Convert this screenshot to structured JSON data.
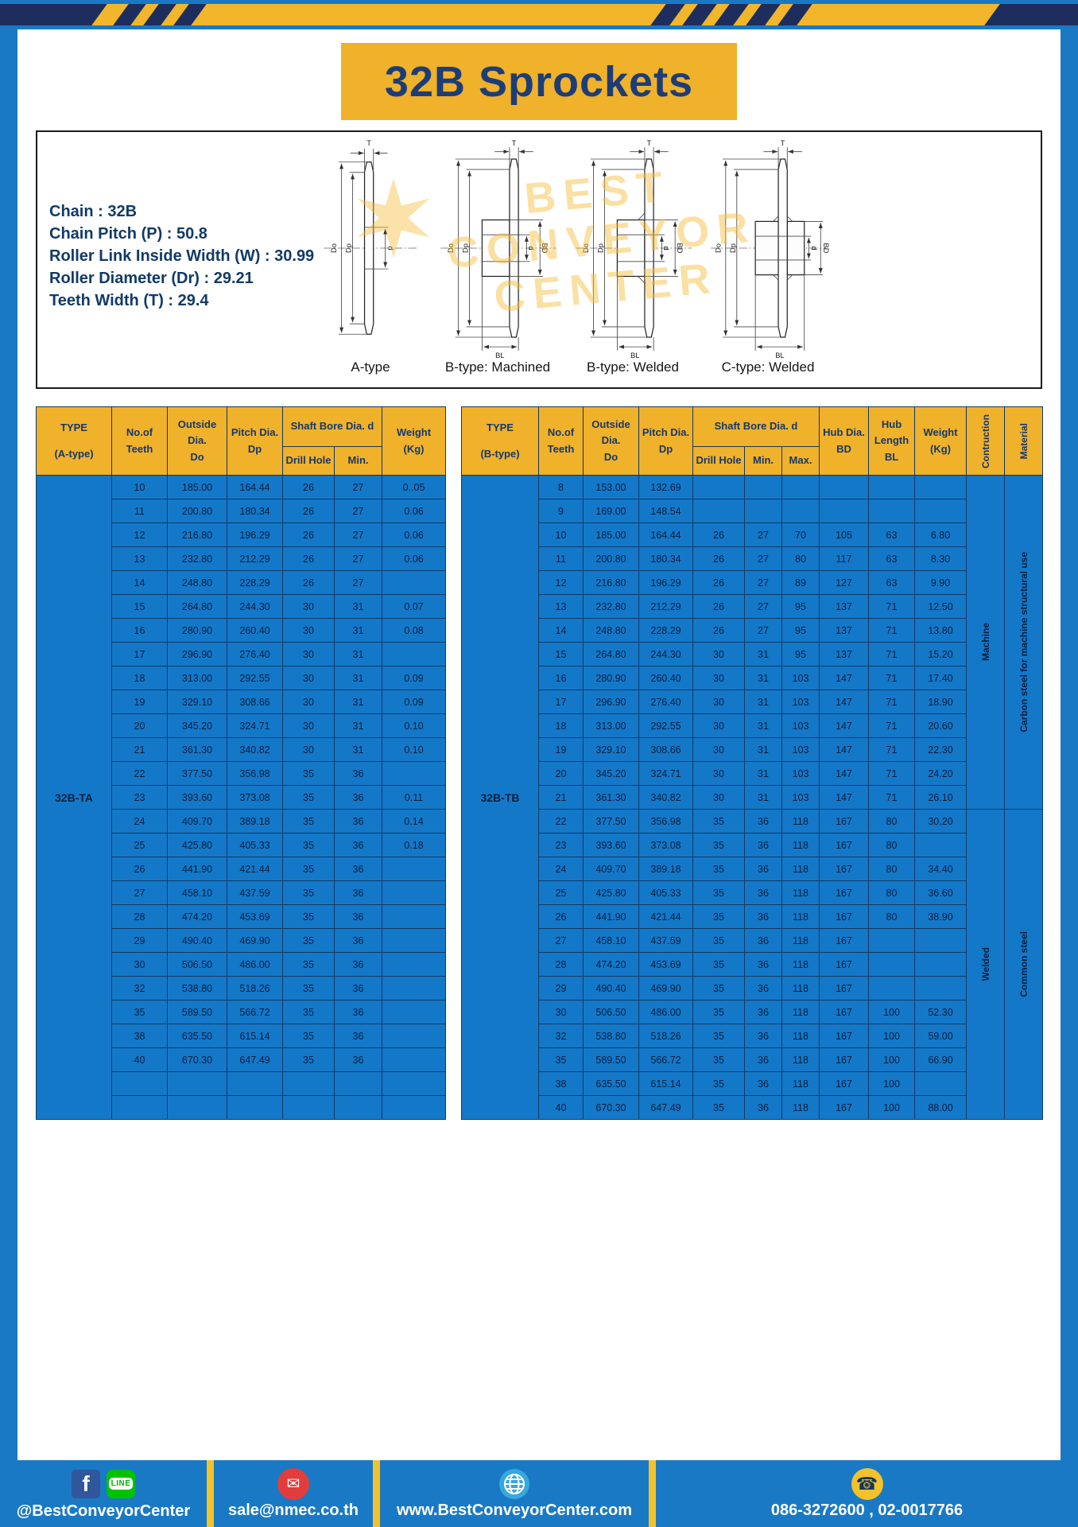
{
  "page": {
    "title": "32B Sprockets"
  },
  "colors": {
    "frame_blue": "#1a79c4",
    "table_cell_blue": "#1478c9",
    "accent_yellow": "#f0b12b",
    "header_navy": "#15386b"
  },
  "specs": {
    "lines": [
      "Chain : 32B",
      "Chain Pitch (P) : 50.8",
      "Roller Link Inside Width (W) : 30.99",
      "Roller Diameter (Dr) : 29.21",
      "Teeth Width (T) : 29.4"
    ]
  },
  "watermark": {
    "lines": [
      "BEST",
      "CONVEYOR",
      "CENTER"
    ]
  },
  "dims": {
    "t": "T",
    "do": "Do",
    "dp": "Dp",
    "d": "d",
    "bd": "BD",
    "bl": "BL"
  },
  "diagram": {
    "captions": [
      "A-type",
      "B-type: Machined",
      "B-type: Welded",
      "C-type: Welded"
    ]
  },
  "table_a": {
    "type_value": "32B-TA",
    "headers": {
      "type": [
        "TYPE",
        "(A-type)"
      ],
      "teeth": [
        "No.of",
        "Teeth"
      ],
      "outside": [
        "Outside",
        "Dia.",
        "Do"
      ],
      "pitch": [
        "Pitch Dia.",
        "Dp"
      ],
      "shaft_bore": "Shaft Bore Dia. d",
      "drill": "Drill Hole",
      "min": "Min.",
      "weight": [
        "Weight",
        "(Kg)"
      ]
    },
    "rows": [
      [
        "10",
        "185.00",
        "164.44",
        "26",
        "27",
        "0..05"
      ],
      [
        "11",
        "200.80",
        "180.34",
        "26",
        "27",
        "0.06"
      ],
      [
        "12",
        "216.80",
        "196.29",
        "26",
        "27",
        "0.06"
      ],
      [
        "13",
        "232.80",
        "212.29",
        "26",
        "27",
        "0.06"
      ],
      [
        "14",
        "248.80",
        "228.29",
        "26",
        "27",
        ""
      ],
      [
        "15",
        "264.80",
        "244.30",
        "30",
        "31",
        "0.07"
      ],
      [
        "16",
        "280.90",
        "260.40",
        "30",
        "31",
        "0.08"
      ],
      [
        "17",
        "296.90",
        "276.40",
        "30",
        "31",
        ""
      ],
      [
        "18",
        "313.00",
        "292.55",
        "30",
        "31",
        "0.09"
      ],
      [
        "19",
        "329.10",
        "308.66",
        "30",
        "31",
        "0.09"
      ],
      [
        "20",
        "345.20",
        "324.71",
        "30",
        "31",
        "0.10"
      ],
      [
        "21",
        "361.30",
        "340.82",
        "30",
        "31",
        "0.10"
      ],
      [
        "22",
        "377.50",
        "356.98",
        "35",
        "36",
        ""
      ],
      [
        "23",
        "393.60",
        "373.08",
        "35",
        "36",
        "0.11"
      ],
      [
        "24",
        "409.70",
        "389.18",
        "35",
        "36",
        "0.14"
      ],
      [
        "25",
        "425.80",
        "405.33",
        "35",
        "36",
        "0.18"
      ],
      [
        "26",
        "441.90",
        "421.44",
        "35",
        "36",
        ""
      ],
      [
        "27",
        "458.10",
        "437.59",
        "35",
        "36",
        ""
      ],
      [
        "28",
        "474.20",
        "453.69",
        "35",
        "36",
        ""
      ],
      [
        "29",
        "490.40",
        "469.90",
        "35",
        "36",
        ""
      ],
      [
        "30",
        "506.50",
        "486.00",
        "35",
        "36",
        ""
      ],
      [
        "32",
        "538.80",
        "518.26",
        "35",
        "36",
        ""
      ],
      [
        "35",
        "589.50",
        "566.72",
        "35",
        "36",
        ""
      ],
      [
        "38",
        "635.50",
        "615.14",
        "35",
        "36",
        ""
      ],
      [
        "40",
        "670.30",
        "647.49",
        "35",
        "36",
        ""
      ],
      [
        "",
        "",
        "",
        "",
        "",
        ""
      ],
      [
        "",
        "",
        "",
        "",
        "",
        ""
      ]
    ]
  },
  "table_b": {
    "type_value": "32B-TB",
    "headers": {
      "type": [
        "TYPE",
        "(B-type)"
      ],
      "teeth": [
        "No.of",
        "Teeth"
      ],
      "outside": [
        "Outside",
        "Dia.",
        "Do"
      ],
      "pitch": [
        "Pitch Dia.",
        "Dp"
      ],
      "shaft_bore": "Shaft Bore Dia. d",
      "drill": "Drill Hole",
      "min": "Min.",
      "max": "Max.",
      "hub_dia": [
        "Hub Dia.",
        "BD"
      ],
      "hub_length": [
        "Hub",
        "Length",
        "BL"
      ],
      "weight": [
        "Weight",
        "(Kg)"
      ],
      "construction": "Contruction",
      "material": "Material"
    },
    "rows": [
      [
        "8",
        "153.00",
        "132.69",
        "",
        "",
        "",
        "",
        "",
        ""
      ],
      [
        "9",
        "169.00",
        "148.54",
        "",
        "",
        "",
        "",
        "",
        ""
      ],
      [
        "10",
        "185.00",
        "164.44",
        "26",
        "27",
        "70",
        "105",
        "63",
        "6.80"
      ],
      [
        "11",
        "200.80",
        "180.34",
        "26",
        "27",
        "80",
        "117",
        "63",
        "8.30"
      ],
      [
        "12",
        "216.80",
        "196.29",
        "26",
        "27",
        "89",
        "127",
        "63",
        "9.90"
      ],
      [
        "13",
        "232.80",
        "212.29",
        "26",
        "27",
        "95",
        "137",
        "71",
        "12.50"
      ],
      [
        "14",
        "248.80",
        "228.29",
        "26",
        "27",
        "95",
        "137",
        "71",
        "13.80"
      ],
      [
        "15",
        "264.80",
        "244.30",
        "30",
        "31",
        "95",
        "137",
        "71",
        "15.20"
      ],
      [
        "16",
        "280.90",
        "260.40",
        "30",
        "31",
        "103",
        "147",
        "71",
        "17.40"
      ],
      [
        "17",
        "296.90",
        "276.40",
        "30",
        "31",
        "103",
        "147",
        "71",
        "18.90"
      ],
      [
        "18",
        "313.00",
        "292.55",
        "30",
        "31",
        "103",
        "147",
        "71",
        "20.60"
      ],
      [
        "19",
        "329.10",
        "308.66",
        "30",
        "31",
        "103",
        "147",
        "71",
        "22.30"
      ],
      [
        "20",
        "345.20",
        "324.71",
        "30",
        "31",
        "103",
        "147",
        "71",
        "24.20"
      ],
      [
        "21",
        "361.30",
        "340.82",
        "30",
        "31",
        "103",
        "147",
        "71",
        "26.10"
      ],
      [
        "22",
        "377.50",
        "356.98",
        "35",
        "36",
        "118",
        "167",
        "80",
        "30.20"
      ],
      [
        "23",
        "393.60",
        "373.08",
        "35",
        "36",
        "118",
        "167",
        "80",
        ""
      ],
      [
        "24",
        "409.70",
        "389.18",
        "35",
        "36",
        "118",
        "167",
        "80",
        "34.40"
      ],
      [
        "25",
        "425.80",
        "405.33",
        "35",
        "36",
        "118",
        "167",
        "80",
        "36.60"
      ],
      [
        "26",
        "441.90",
        "421.44",
        "35",
        "36",
        "118",
        "167",
        "80",
        "38.90"
      ],
      [
        "27",
        "458.10",
        "437.59",
        "35",
        "36",
        "118",
        "167",
        "",
        ""
      ],
      [
        "28",
        "474.20",
        "453.69",
        "35",
        "36",
        "118",
        "167",
        "",
        ""
      ],
      [
        "29",
        "490.40",
        "469.90",
        "35",
        "36",
        "118",
        "167",
        "",
        ""
      ],
      [
        "30",
        "506.50",
        "486.00",
        "35",
        "36",
        "118",
        "167",
        "100",
        "52.30"
      ],
      [
        "32",
        "538.80",
        "518.26",
        "35",
        "36",
        "118",
        "167",
        "100",
        "59.00"
      ],
      [
        "35",
        "589.50",
        "566.72",
        "35",
        "36",
        "118",
        "167",
        "100",
        "66.90"
      ],
      [
        "38",
        "635.50",
        "615.14",
        "35",
        "36",
        "118",
        "167",
        "100",
        ""
      ],
      [
        "40",
        "670.30",
        "647.49",
        "35",
        "36",
        "118",
        "167",
        "100",
        "88.00"
      ]
    ],
    "construction_groups": [
      {
        "label": "Machine",
        "span": 14
      },
      {
        "label": "Welded",
        "span": 13
      }
    ],
    "material_groups": [
      {
        "label": "Carbon steel for machine structural use",
        "span": 14
      },
      {
        "label": "Common steel",
        "span": 13
      }
    ]
  },
  "footer": {
    "social": "@BestConveyorCenter",
    "email": "sale@nmec.co.th",
    "website": "www.BestConveyorCenter.com",
    "phone": "086-3272600 , 02-0017766"
  },
  "icons": {
    "facebook": "f",
    "line_badge": "LINE",
    "mail_glyph": "✉",
    "phone_glyph": "☎"
  }
}
